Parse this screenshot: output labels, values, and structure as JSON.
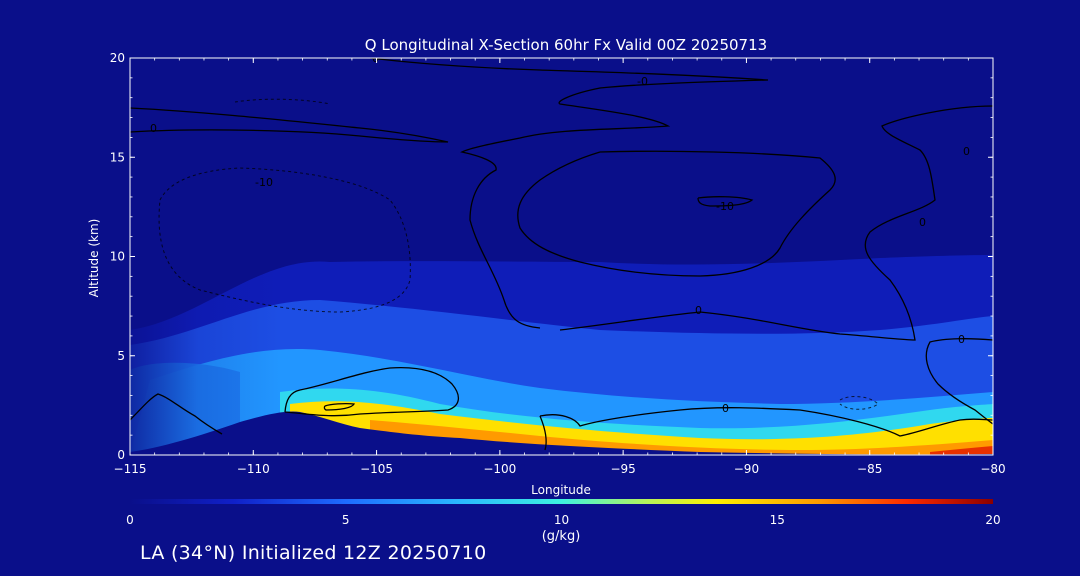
{
  "chart_data": {
    "type": "heatmap",
    "title": "Q Longitudinal X-Section 60hr  Fx Valid 00Z 20250713",
    "xlabel": "Longitude",
    "ylabel": "Altitude (km)",
    "xlim": [
      -115,
      -80
    ],
    "ylim": [
      0,
      20
    ],
    "x_ticks": [
      "-115",
      "-110",
      "-105",
      "-100",
      "-95",
      "-90",
      "-85",
      "-80"
    ],
    "y_ticks": [
      "0",
      "5",
      "10",
      "15",
      "20"
    ],
    "colorbar": {
      "label": "(g/kg)",
      "range": [
        0,
        20
      ],
      "ticks": [
        "0",
        "5",
        "10",
        "15",
        "20"
      ]
    },
    "moisture_layer": {
      "longitude": [
        -115,
        -112,
        -110,
        -108,
        -106,
        -104,
        -102,
        -100,
        -98,
        -96,
        -94,
        -92,
        -90,
        -88,
        -86,
        -84,
        -82,
        -80
      ],
      "q_at_1km_gkg": [
        3,
        4,
        5,
        9,
        10,
        12,
        13,
        13.5,
        14,
        14.5,
        14,
        13.5,
        13,
        13,
        13.5,
        14,
        15,
        16
      ],
      "moist_top_km": [
        6,
        6,
        6.5,
        7,
        7,
        7,
        7,
        7,
        7,
        7,
        7,
        7,
        7,
        7,
        7,
        7,
        7,
        7
      ]
    },
    "terrain": {
      "longitude": [
        -115,
        -113,
        -111,
        -109,
        -108,
        -107,
        -105,
        -103,
        -101,
        -99,
        -97,
        -95,
        -93,
        -91,
        -89,
        -87,
        -85,
        -83,
        -81,
        -80
      ],
      "elevation_km": [
        0.1,
        0.3,
        0.8,
        1.8,
        2.0,
        1.8,
        1.2,
        0.9,
        0.6,
        0.4,
        0.3,
        0.2,
        0.15,
        0.1,
        0.1,
        0.1,
        0.05,
        0.05,
        0.05,
        0.05
      ]
    },
    "contour_labels": [
      "0",
      "0",
      "-0",
      "0",
      "-10",
      "-10",
      "0",
      "0",
      "0",
      "0"
    ]
  },
  "footer_text": "LA (34°N) Initialized 12Z 20250710"
}
